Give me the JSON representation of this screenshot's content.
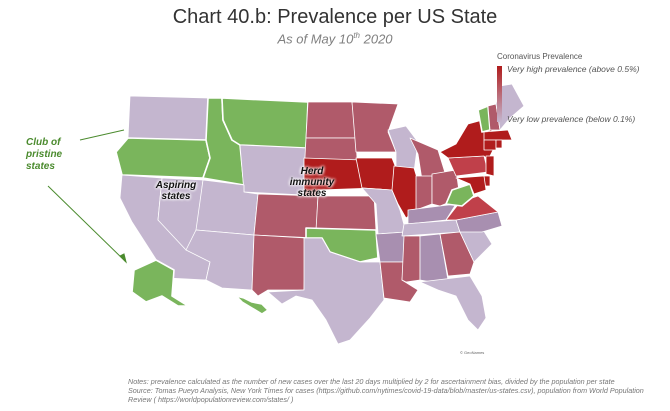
{
  "title": "Chart 40.b: Prevalence per US State",
  "subtitle_prefix": "As of May 10",
  "subtitle_sup": "th",
  "subtitle_suffix": " 2020",
  "legend": {
    "title": "Coronavirus Prevalence",
    "high_label": "Very high prevalence (above 0.5%)",
    "low_label": "Very low prevalence (below 0.1%)"
  },
  "annotations": {
    "callout": "Club of pristine states",
    "aspiring": "Aspiring states",
    "herd": "Herd immunity states"
  },
  "credit": "© GeoNames",
  "notes": {
    "line1": "Notes: prevalence calculated as the number of new cases over the last 20 days multiplied by 2 for ascertainment bias, divided by the population per state",
    "line2": "Source: Tomas Pueyo Analysis, New York Times for cases (https://github.com/nytimes/covid-19-data/blob/master/us-states.csv), population from World Population Review ( https://worldpopulationreview.com/states/ )"
  },
  "colors": {
    "background": "#ffffff",
    "pristine": "#7ab55c",
    "very_low": "#c4b6cf",
    "low": "#a88fb0",
    "mid": "#b05a6a",
    "high": "#c0404a",
    "very_high": "#b01c1c",
    "border": "#ffffff"
  },
  "chart_data": {
    "type": "choropleth",
    "title": "Chart 40.b: Prevalence per US State",
    "subtitle": "As of May 10th 2020",
    "metric": "Coronavirus Prevalence",
    "scale": {
      "low": "Very low prevalence (below 0.1%)",
      "high": "Very high prevalence (above 0.5%)"
    },
    "legend_placement": "top-right",
    "states": [
      {
        "id": "WA",
        "category": "very_low"
      },
      {
        "id": "OR",
        "category": "pristine"
      },
      {
        "id": "ID",
        "category": "pristine"
      },
      {
        "id": "MT",
        "category": "pristine"
      },
      {
        "id": "WY",
        "category": "very_low"
      },
      {
        "id": "CA",
        "category": "very_low"
      },
      {
        "id": "NV",
        "category": "very_low"
      },
      {
        "id": "UT",
        "category": "very_low"
      },
      {
        "id": "AZ",
        "category": "very_low"
      },
      {
        "id": "CO",
        "category": "mid"
      },
      {
        "id": "NM",
        "category": "mid"
      },
      {
        "id": "ND",
        "category": "mid"
      },
      {
        "id": "SD",
        "category": "mid"
      },
      {
        "id": "NE",
        "category": "very_high"
      },
      {
        "id": "KS",
        "category": "mid"
      },
      {
        "id": "OK",
        "category": "pristine"
      },
      {
        "id": "TX",
        "category": "very_low"
      },
      {
        "id": "MN",
        "category": "mid"
      },
      {
        "id": "IA",
        "category": "very_high"
      },
      {
        "id": "MO",
        "category": "very_low"
      },
      {
        "id": "AR",
        "category": "low"
      },
      {
        "id": "LA",
        "category": "mid"
      },
      {
        "id": "WI",
        "category": "very_low"
      },
      {
        "id": "IL",
        "category": "very_high"
      },
      {
        "id": "MI",
        "category": "mid"
      },
      {
        "id": "IN",
        "category": "mid"
      },
      {
        "id": "OH",
        "category": "mid"
      },
      {
        "id": "KY",
        "category": "low"
      },
      {
        "id": "TN",
        "category": "very_low"
      },
      {
        "id": "MS",
        "category": "mid"
      },
      {
        "id": "AL",
        "category": "low"
      },
      {
        "id": "GA",
        "category": "mid"
      },
      {
        "id": "FL",
        "category": "very_low"
      },
      {
        "id": "SC",
        "category": "very_low"
      },
      {
        "id": "NC",
        "category": "low"
      },
      {
        "id": "VA",
        "category": "high"
      },
      {
        "id": "WV",
        "category": "pristine"
      },
      {
        "id": "PA",
        "category": "high"
      },
      {
        "id": "NY",
        "category": "very_high"
      },
      {
        "id": "VT",
        "category": "pristine"
      },
      {
        "id": "NH",
        "category": "mid"
      },
      {
        "id": "ME",
        "category": "very_low"
      },
      {
        "id": "MA",
        "category": "very_high"
      },
      {
        "id": "CT",
        "category": "very_high"
      },
      {
        "id": "RI",
        "category": "very_high"
      },
      {
        "id": "NJ",
        "category": "very_high"
      },
      {
        "id": "DE",
        "category": "very_high"
      },
      {
        "id": "MD",
        "category": "very_high"
      },
      {
        "id": "AK",
        "category": "pristine"
      },
      {
        "id": "HI",
        "category": "pristine"
      }
    ],
    "annotations": [
      "Club of pristine states",
      "Aspiring states",
      "Herd immunity states"
    ]
  }
}
